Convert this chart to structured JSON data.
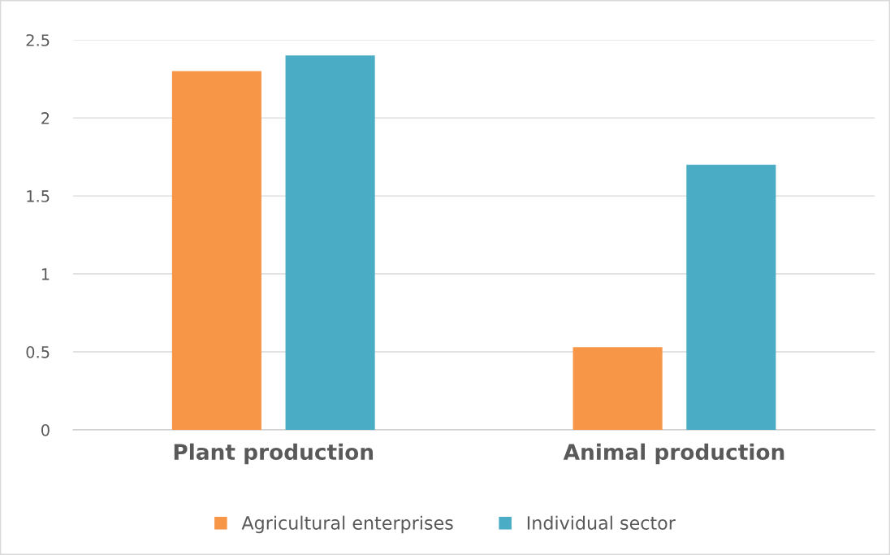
{
  "chart_data": {
    "type": "bar",
    "categories": [
      "Plant production",
      "Animal production"
    ],
    "series": [
      {
        "name": "Agricultural enterprises",
        "color": "#f79646",
        "values": [
          2.3,
          0.53
        ]
      },
      {
        "name": "Individual sector",
        "color": "#4bacc6",
        "values": [
          2.4,
          1.7
        ]
      }
    ],
    "ylim": [
      0,
      2.5
    ],
    "yticks": [
      0,
      0.5,
      1,
      1.5,
      2,
      2.5
    ],
    "grid": "y",
    "legend": "bottom"
  }
}
